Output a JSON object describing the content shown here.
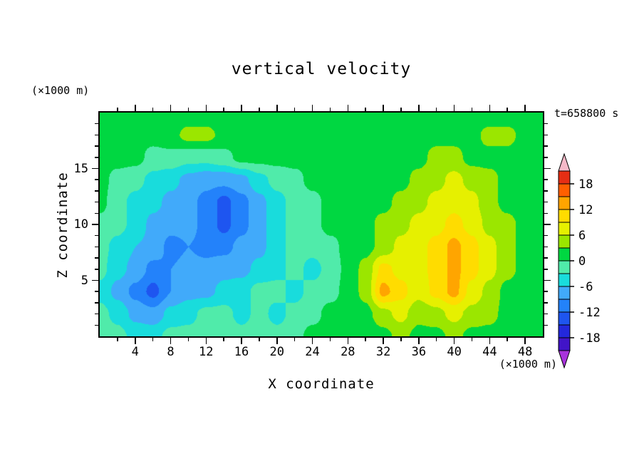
{
  "figure": {
    "title": "vertical velocity",
    "time_label": "t=658800 s",
    "z_axis_unit": "(×1000 m)",
    "x_axis_unit": "(×1000 m)",
    "x_axis_title": "X coordinate",
    "z_axis_title": "Z coordinate"
  },
  "chart_data": {
    "type": "heatmap",
    "title": "vertical velocity",
    "subtitle": "t=658800 s",
    "xlabel": "X coordinate (×1000 m)",
    "ylabel": "Z coordinate (×1000 m)",
    "x_range": [
      0,
      50
    ],
    "z_range": [
      0,
      20
    ],
    "x_ticks_major": [
      4,
      8,
      12,
      16,
      20,
      24,
      28,
      32,
      36,
      40,
      44,
      48
    ],
    "x_ticks_minor": [
      2,
      6,
      10,
      14,
      18,
      22,
      26,
      30,
      34,
      38,
      42,
      46
    ],
    "z_ticks_major": [
      5,
      10,
      15
    ],
    "z_ticks_minor": [
      1,
      2,
      3,
      4,
      6,
      7,
      8,
      9,
      11,
      12,
      13,
      14,
      16,
      17,
      18,
      19
    ],
    "levels": [
      -18,
      -15,
      -12,
      -9,
      -6,
      -3,
      0,
      3,
      6,
      9,
      12,
      15,
      18
    ],
    "colors": [
      "#4114C8",
      "#2328DC",
      "#1E55F0",
      "#2382FA",
      "#41AAFA",
      "#19DCDC",
      "#50EBAA",
      "#00D741",
      "#9BE600",
      "#E6F000",
      "#FFDC00",
      "#FFA500",
      "#FF5F00",
      "#E62E14"
    ],
    "under_arrow_color": "#A832DC",
    "over_arrow_color": "#F5B9C8",
    "colorbar_range": [
      -21,
      21
    ],
    "colorbar_labels": [
      18,
      12,
      6,
      0,
      -6,
      -12,
      -18
    ],
    "grid": {
      "x": [
        0,
        2,
        4,
        6,
        8,
        10,
        12,
        14,
        16,
        18,
        20,
        22,
        24,
        26,
        28,
        30,
        32,
        34,
        36,
        38,
        40,
        42,
        44,
        46,
        48,
        50
      ],
      "z": [
        20,
        18,
        16,
        14,
        12,
        10,
        8,
        6,
        4,
        2,
        0
      ],
      "values": [
        [
          1,
          1,
          1,
          1,
          1,
          1,
          1,
          1,
          1,
          1,
          1,
          1,
          1,
          1,
          1,
          1,
          1,
          1,
          1,
          1,
          1,
          1,
          1,
          1,
          1,
          1
        ],
        [
          1,
          1,
          1,
          1,
          2,
          4,
          4,
          2,
          1,
          1,
          1,
          1,
          1,
          1,
          1,
          1,
          1,
          1,
          2,
          2,
          2,
          2,
          4,
          4,
          2,
          1
        ],
        [
          1,
          1,
          1,
          -1,
          -1,
          -2,
          -2,
          -1,
          1,
          1,
          1,
          1,
          1,
          1,
          1,
          1,
          1,
          2,
          2,
          4,
          4,
          2,
          2,
          2,
          1,
          1
        ],
        [
          1,
          -1,
          -2,
          -4,
          -5,
          -7,
          -8,
          -8,
          -7,
          -4,
          -2,
          -1,
          1,
          1,
          1,
          1,
          2,
          2,
          4,
          5,
          7,
          5,
          4,
          2,
          1,
          1
        ],
        [
          1,
          -2,
          -4,
          -5,
          -7,
          -8,
          -10,
          -13,
          -10,
          -7,
          -4,
          -2,
          -1,
          1,
          1,
          2,
          2,
          4,
          5,
          7,
          8,
          7,
          4,
          2,
          1,
          1
        ],
        [
          -1,
          -2,
          -4,
          -7,
          -8,
          -8,
          -10,
          -13,
          -10,
          -7,
          -4,
          -2,
          -1,
          1,
          1,
          2,
          4,
          5,
          7,
          8,
          10,
          8,
          5,
          4,
          2,
          1
        ],
        [
          -2,
          -4,
          -6,
          -7,
          -10,
          -9,
          -10,
          -10,
          -8,
          -7,
          -4,
          -2,
          -2,
          -1,
          1,
          2,
          4,
          7,
          8,
          10,
          13,
          10,
          7,
          4,
          2,
          1
        ],
        [
          -2,
          -5,
          -7,
          -10,
          -9,
          -8,
          -8,
          -7,
          -7,
          -5,
          -4,
          -2,
          -4,
          -2,
          1,
          4,
          10,
          8,
          8,
          10,
          13,
          10,
          7,
          4,
          2,
          1
        ],
        [
          -4,
          -7,
          -10,
          -13,
          -9,
          -7,
          -7,
          -5,
          -4,
          -2,
          -2,
          -4,
          -2,
          -1,
          1,
          4,
          13,
          10,
          7,
          10,
          13,
          8,
          5,
          2,
          1,
          1
        ],
        [
          -2,
          -4,
          -7,
          -8,
          -5,
          -4,
          -2,
          -2,
          -4,
          -2,
          -4,
          -2,
          -1,
          1,
          1,
          2,
          5,
          7,
          4,
          5,
          7,
          5,
          4,
          2,
          1,
          1
        ],
        [
          -1,
          -2,
          -4,
          -4,
          -2,
          -2,
          -1,
          -1,
          -2,
          -1,
          -2,
          -1,
          1,
          1,
          1,
          1,
          2,
          4,
          2,
          2,
          4,
          2,
          2,
          1,
          1,
          1
        ]
      ]
    }
  }
}
